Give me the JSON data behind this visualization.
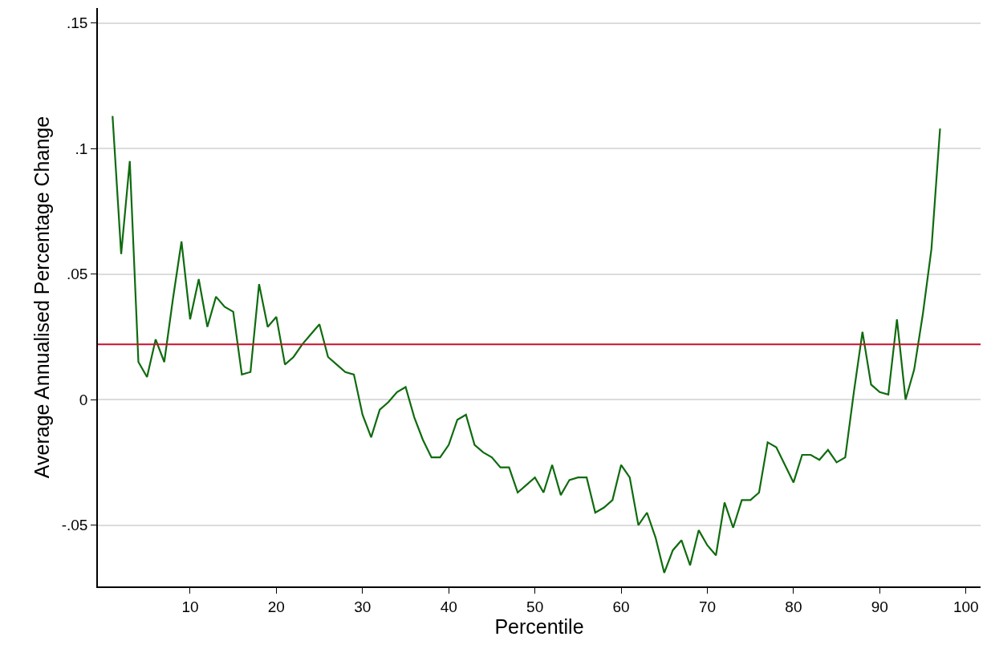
{
  "chart_data": {
    "type": "line",
    "xlabel": "Percentile",
    "ylabel": "Average Annualised Percentage Change",
    "x": [
      1,
      2,
      3,
      4,
      5,
      6,
      7,
      8,
      9,
      10,
      11,
      12,
      13,
      14,
      15,
      16,
      17,
      18,
      19,
      20,
      21,
      22,
      23,
      24,
      25,
      26,
      27,
      28,
      29,
      30,
      31,
      32,
      33,
      34,
      35,
      36,
      37,
      38,
      39,
      40,
      41,
      42,
      43,
      44,
      45,
      46,
      47,
      48,
      49,
      50,
      51,
      52,
      53,
      54,
      55,
      56,
      57,
      58,
      59,
      60,
      61,
      62,
      63,
      64,
      65,
      66,
      67,
      68,
      69,
      70,
      71,
      72,
      73,
      74,
      75,
      76,
      77,
      78,
      79,
      80,
      81,
      82,
      83,
      84,
      85,
      86,
      87,
      88,
      89,
      90,
      91,
      92,
      93,
      94,
      95,
      96,
      97
    ],
    "series": [
      {
        "color": "#0f6b0f",
        "values": [
          0.113,
          0.058,
          0.095,
          0.015,
          0.009,
          0.024,
          0.015,
          0.04,
          0.063,
          0.032,
          0.048,
          0.029,
          0.041,
          0.037,
          0.035,
          0.01,
          0.011,
          0.046,
          0.029,
          0.033,
          0.014,
          0.017,
          0.022,
          0.026,
          0.03,
          0.017,
          0.014,
          0.011,
          0.01,
          -0.006,
          -0.015,
          -0.004,
          -0.001,
          0.003,
          0.005,
          -0.007,
          -0.016,
          -0.023,
          -0.023,
          -0.018,
          -0.008,
          -0.006,
          -0.018,
          -0.021,
          -0.023,
          -0.027,
          -0.027,
          -0.037,
          -0.034,
          -0.031,
          -0.037,
          -0.026,
          -0.038,
          -0.032,
          -0.031,
          -0.031,
          -0.045,
          -0.043,
          -0.04,
          -0.026,
          -0.031,
          -0.05,
          -0.045,
          -0.055,
          -0.069,
          -0.06,
          -0.056,
          -0.066,
          -0.052,
          -0.058,
          -0.062,
          -0.041,
          -0.051,
          -0.04,
          -0.04,
          -0.037,
          -0.017,
          -0.019,
          -0.026,
          -0.033,
          -0.022,
          -0.022,
          -0.024,
          -0.02,
          -0.025,
          -0.023,
          0.003,
          0.027,
          0.006,
          0.003,
          0.002,
          0.032,
          0.0,
          0.012,
          0.034,
          0.06,
          0.108
        ]
      }
    ],
    "xlim": [
      -0.7,
      101.7
    ],
    "xticks": [
      10,
      20,
      30,
      40,
      50,
      60,
      70,
      80,
      90,
      100
    ],
    "ylim": [
      -0.0744,
      0.156
    ],
    "yticks": [
      {
        "value": -0.05,
        "label": "-.05"
      },
      0,
      {
        "value": 0.05,
        "label": ".05"
      },
      {
        "value": 0.1,
        "label": ".1"
      },
      {
        "value": 0.15,
        "label": ".15"
      }
    ],
    "grid": "y",
    "marker": "none",
    "line_style": "solid",
    "ref_lines": [
      {
        "axis": "y",
        "value": 0.022,
        "color": "#c8102e"
      }
    ]
  }
}
